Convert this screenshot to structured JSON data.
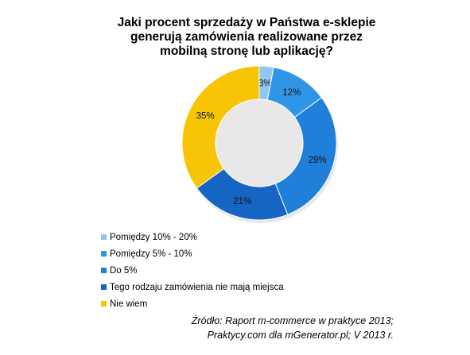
{
  "chart_data": {
    "type": "pie",
    "title_lines": [
      "Jaki procent sprzedaży w Państwa e-sklepie",
      "generują zamówienia realizowane przez",
      "mobilną stronę lub aplikację?"
    ],
    "donut": true,
    "categories": [
      "Pomiędzy 10% - 20%",
      "Pomiędzy 5% - 10%",
      "Do 5%",
      "Tego rodzaju zamówienia nie mają miejsca",
      "Nie wiem"
    ],
    "values": [
      3,
      12,
      29,
      21,
      35
    ],
    "data_labels": [
      "3%",
      "12%",
      "29%",
      "21%",
      "35%"
    ],
    "colors": [
      "#8fc7ee",
      "#2f95e6",
      "#1f7fd9",
      "#1765c2",
      "#f7c505"
    ],
    "legend_position": "bottom-left"
  },
  "source": {
    "line1": "Źródło: Raport m-commerce w praktyce 2013;",
    "line2": "Praktycy.com dla mGenerator.pl; V 2013 r."
  }
}
